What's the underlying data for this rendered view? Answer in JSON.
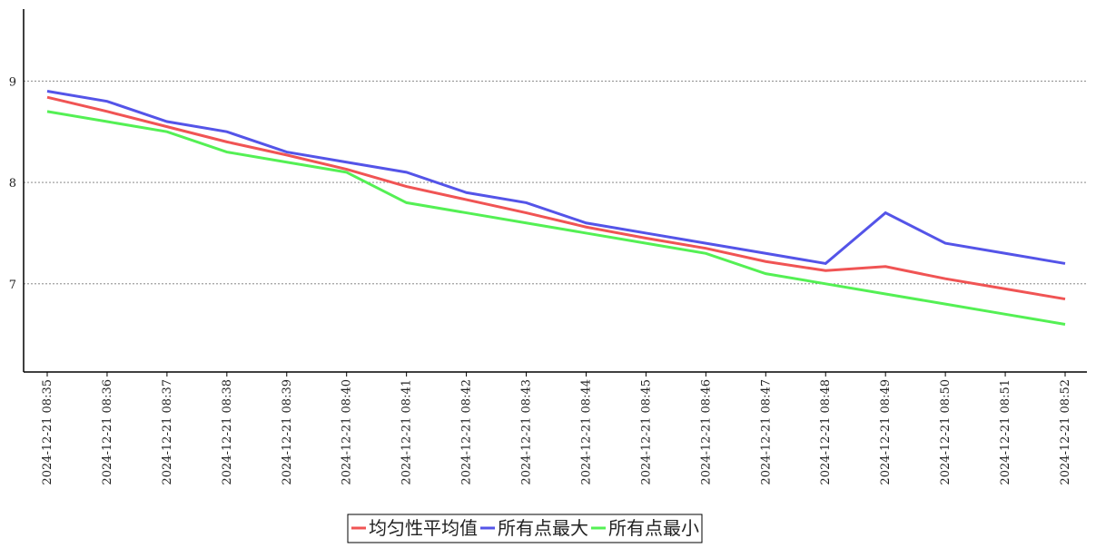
{
  "chart_data": {
    "type": "line",
    "categories": [
      "2024-12-21 08:35",
      "2024-12-21 08:36",
      "2024-12-21 08:37",
      "2024-12-21 08:38",
      "2024-12-21 08:39",
      "2024-12-21 08:40",
      "2024-12-21 08:41",
      "2024-12-21 08:42",
      "2024-12-21 08:43",
      "2024-12-21 08:44",
      "2024-12-21 08:45",
      "2024-12-21 08:46",
      "2024-12-21 08:47",
      "2024-12-21 08:48",
      "2024-12-21 08:49",
      "2024-12-21 08:50",
      "2024-12-21 08:51",
      "2024-12-21 08:52"
    ],
    "series": [
      {
        "name": "均匀性平均值",
        "color": "#f05454",
        "values": [
          8.84,
          8.7,
          8.55,
          8.4,
          8.27,
          8.13,
          7.96,
          7.83,
          7.7,
          7.56,
          7.45,
          7.35,
          7.22,
          7.13,
          7.17,
          7.05,
          6.95,
          6.85
        ]
      },
      {
        "name": "所有点最大",
        "color": "#5454e8",
        "values": [
          8.9,
          8.8,
          8.6,
          8.5,
          8.3,
          8.2,
          8.1,
          7.9,
          7.8,
          7.6,
          7.5,
          7.4,
          7.3,
          7.2,
          7.7,
          7.4,
          7.3,
          7.2
        ]
      },
      {
        "name": "所有点最小",
        "color": "#54f054",
        "values": [
          8.7,
          8.6,
          8.5,
          8.3,
          8.2,
          8.1,
          7.8,
          7.7,
          7.6,
          7.5,
          7.4,
          7.3,
          7.1,
          7.0,
          6.9,
          6.8,
          6.7,
          6.6
        ]
      }
    ],
    "ylim": [
      6.13,
      9.71
    ],
    "yticks": [
      7,
      8,
      9
    ],
    "grid": true,
    "legend": "bottom"
  }
}
